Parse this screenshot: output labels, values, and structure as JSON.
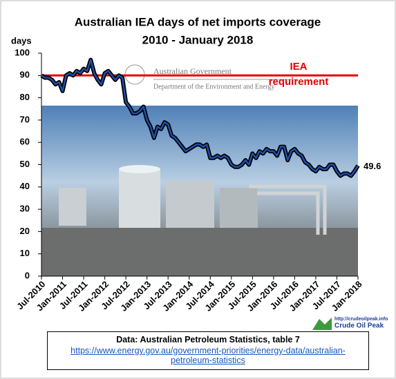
{
  "chart_data": {
    "type": "line",
    "title": "Australian  IEA days of net imports coverage",
    "subtitle": "2010 - January  2018",
    "y_label": "days",
    "categories": [
      "Jul-2010",
      null,
      null,
      null,
      null,
      null,
      "Jan-2011",
      null,
      null,
      null,
      null,
      null,
      "Jul-2011",
      null,
      null,
      null,
      null,
      null,
      "Jan-2012",
      null,
      null,
      null,
      null,
      null,
      "Jul-2012",
      null,
      null,
      null,
      null,
      null,
      "Jan-2013",
      null,
      null,
      null,
      null,
      null,
      "Jul-2013",
      null,
      null,
      null,
      null,
      null,
      "Jan-2014",
      null,
      null,
      null,
      null,
      null,
      "Jul-2014",
      null,
      null,
      null,
      null,
      null,
      "Jan-2015",
      null,
      null,
      null,
      null,
      null,
      "Jul-2015",
      null,
      null,
      null,
      null,
      null,
      "Jan-2016",
      null,
      null,
      null,
      null,
      null,
      "Jul-2016",
      null,
      null,
      null,
      null,
      null,
      "Jan-2017",
      null,
      null,
      null,
      null,
      null,
      "Jul-2017",
      null,
      null,
      null,
      null,
      null,
      "Jan-2018"
    ],
    "values": [
      90,
      89,
      89,
      88,
      86,
      87,
      83,
      90,
      91,
      90,
      92,
      91,
      93,
      92,
      97,
      91,
      88,
      86,
      91,
      92,
      90,
      88,
      90,
      89,
      78,
      76,
      73,
      73,
      74,
      76,
      70,
      67,
      62,
      67,
      66,
      69,
      68,
      63,
      62,
      60,
      58,
      56,
      57,
      58,
      59,
      59,
      58,
      59,
      53,
      53,
      54,
      53,
      54,
      53,
      50,
      49,
      49,
      50,
      52,
      50,
      55,
      53,
      56,
      55,
      57,
      56,
      56,
      54,
      58,
      58,
      52,
      56,
      57,
      55,
      54,
      51,
      50,
      48,
      47,
      49,
      48,
      48,
      50,
      50,
      47,
      45,
      46,
      46,
      45,
      47,
      49.6
    ],
    "color": "#1f4fa8",
    "outline_color": "#000000",
    "ylim": [
      0,
      100
    ],
    "yticks": [
      0,
      10,
      20,
      30,
      40,
      50,
      60,
      70,
      80,
      90,
      100
    ],
    "reference_line": {
      "value": 90,
      "label": [
        "IEA",
        "requirement"
      ],
      "color": "#e30000"
    },
    "watermark": [
      "Australian Government",
      "Department of the Environment and Energy"
    ],
    "logo": {
      "url": "http://crudeoilpeak.info",
      "name": "Crude Oil Peak"
    },
    "source": {
      "text": "Data: Australian Petroleum Statistics, table 7",
      "link": "https://www.energy.gov.au/government-priorities/energy-data/australian-petroleum-statistics"
    }
  }
}
